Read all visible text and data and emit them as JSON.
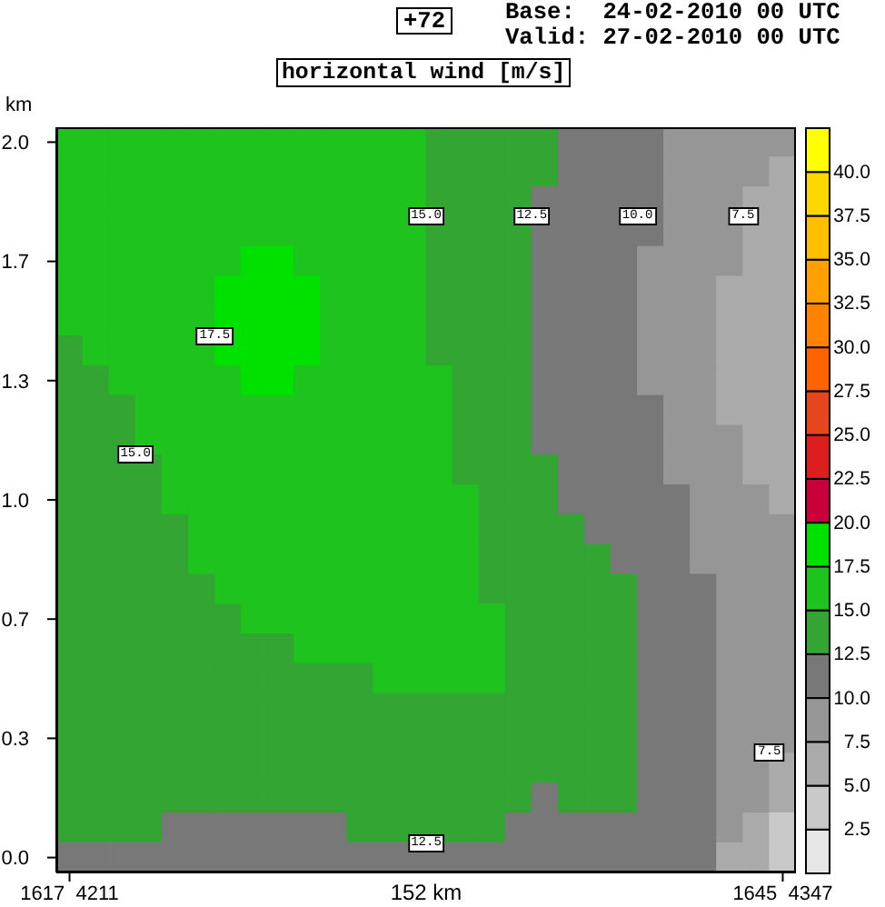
{
  "chart_data": {
    "type": "heatmap",
    "title": "horizontal wind [m/s]",
    "annotations": [
      "+72",
      "Base:  24-02-2010 00 UTC",
      "Valid: 27-02-2010 00 UTC",
      "17.5",
      "15.0",
      "15.0",
      "12.5",
      "10.0",
      "7.5",
      "7.5",
      "12.5"
    ],
    "xlabel": "152 km",
    "ylabel": "km",
    "categories": [
      "1617  4211",
      null,
      null,
      null,
      null,
      null,
      null,
      null,
      null,
      null,
      null,
      null,
      null,
      null,
      null,
      null,
      null,
      null,
      null,
      null,
      null,
      null,
      null,
      null,
      null,
      null,
      null,
      "1645  4347"
    ],
    "y_categories": [
      "2.0",
      null,
      null,
      null,
      "1.7",
      null,
      null,
      null,
      "1.3",
      null,
      null,
      null,
      "1.0",
      null,
      null,
      null,
      "0.7",
      null,
      null,
      null,
      "0.3",
      null,
      null,
      null,
      "0.0"
    ],
    "cells": [
      [
        16,
        16,
        16,
        16,
        16,
        16,
        16,
        16,
        16,
        16,
        16,
        16,
        16,
        16,
        14,
        14,
        14,
        14,
        14,
        11,
        11,
        11,
        11,
        9,
        9,
        9,
        9,
        9
      ],
      [
        16,
        16,
        16,
        16,
        16,
        16,
        16,
        16,
        16,
        16,
        16,
        16,
        16,
        16,
        14,
        14,
        14,
        14,
        14,
        11,
        11,
        11,
        11,
        9,
        9,
        9,
        9,
        6
      ],
      [
        16,
        16,
        16,
        16,
        16,
        16,
        16,
        16,
        16,
        16,
        16,
        16,
        16,
        16,
        14,
        14,
        14,
        14,
        11,
        11,
        11,
        11,
        11,
        9,
        9,
        9,
        6,
        6
      ],
      [
        16,
        16,
        16,
        16,
        16,
        16,
        16,
        16,
        16,
        16,
        16,
        16,
        16,
        16,
        14,
        14,
        14,
        14,
        11,
        11,
        11,
        11,
        11,
        9,
        9,
        9,
        6,
        6
      ],
      [
        16,
        16,
        16,
        16,
        16,
        16,
        16,
        19,
        19,
        16,
        16,
        16,
        16,
        16,
        14,
        14,
        14,
        14,
        11,
        11,
        11,
        11,
        9,
        9,
        9,
        9,
        6,
        6
      ],
      [
        16,
        16,
        16,
        16,
        16,
        16,
        19,
        19,
        19,
        19,
        16,
        16,
        16,
        16,
        14,
        14,
        14,
        14,
        11,
        11,
        11,
        11,
        9,
        9,
        9,
        6,
        6,
        6
      ],
      [
        16,
        16,
        16,
        16,
        16,
        16,
        19,
        19,
        19,
        19,
        16,
        16,
        16,
        16,
        14,
        14,
        14,
        14,
        11,
        11,
        11,
        11,
        9,
        9,
        9,
        6,
        6,
        6
      ],
      [
        14,
        16,
        16,
        16,
        16,
        16,
        19,
        19,
        19,
        19,
        16,
        16,
        16,
        16,
        14,
        14,
        14,
        14,
        11,
        11,
        11,
        11,
        9,
        9,
        9,
        6,
        6,
        6
      ],
      [
        14,
        14,
        16,
        16,
        16,
        16,
        16,
        19,
        19,
        16,
        16,
        16,
        16,
        16,
        16,
        14,
        14,
        14,
        11,
        11,
        11,
        11,
        9,
        9,
        9,
        6,
        6,
        6
      ],
      [
        14,
        14,
        14,
        16,
        16,
        16,
        16,
        16,
        16,
        16,
        16,
        16,
        16,
        16,
        16,
        14,
        14,
        14,
        11,
        11,
        11,
        11,
        11,
        9,
        9,
        6,
        6,
        6
      ],
      [
        14,
        14,
        14,
        16,
        16,
        16,
        16,
        16,
        16,
        16,
        16,
        16,
        16,
        16,
        16,
        14,
        14,
        14,
        11,
        11,
        11,
        11,
        11,
        9,
        9,
        9,
        6,
        6
      ],
      [
        14,
        14,
        14,
        14,
        16,
        16,
        16,
        16,
        16,
        16,
        16,
        16,
        16,
        16,
        16,
        14,
        14,
        14,
        14,
        11,
        11,
        11,
        11,
        9,
        9,
        9,
        6,
        6
      ],
      [
        14,
        14,
        14,
        14,
        16,
        16,
        16,
        16,
        16,
        16,
        16,
        16,
        16,
        16,
        16,
        16,
        14,
        14,
        14,
        11,
        11,
        11,
        11,
        11,
        9,
        9,
        9,
        6
      ],
      [
        14,
        14,
        14,
        14,
        14,
        16,
        16,
        16,
        16,
        16,
        16,
        16,
        16,
        16,
        16,
        16,
        14,
        14,
        14,
        14,
        11,
        11,
        11,
        11,
        9,
        9,
        9,
        9
      ],
      [
        14,
        14,
        14,
        14,
        14,
        16,
        16,
        16,
        16,
        16,
        16,
        16,
        16,
        16,
        16,
        16,
        14,
        14,
        14,
        14,
        14,
        11,
        11,
        11,
        9,
        9,
        9,
        9
      ],
      [
        14,
        14,
        14,
        14,
        14,
        14,
        16,
        16,
        16,
        16,
        16,
        16,
        16,
        16,
        16,
        16,
        14,
        14,
        14,
        14,
        14,
        14,
        11,
        11,
        11,
        9,
        9,
        9
      ],
      [
        14,
        14,
        14,
        14,
        14,
        14,
        14,
        16,
        16,
        16,
        16,
        16,
        16,
        16,
        16,
        16,
        16,
        14,
        14,
        14,
        14,
        14,
        11,
        11,
        11,
        9,
        9,
        9
      ],
      [
        14,
        14,
        14,
        14,
        14,
        14,
        14,
        14,
        14,
        16,
        16,
        16,
        16,
        16,
        16,
        16,
        16,
        14,
        14,
        14,
        14,
        14,
        11,
        11,
        11,
        9,
        9,
        9
      ],
      [
        14,
        14,
        14,
        14,
        14,
        14,
        14,
        14,
        14,
        14,
        14,
        14,
        16,
        16,
        16,
        16,
        16,
        14,
        14,
        14,
        14,
        14,
        11,
        11,
        11,
        9,
        9,
        9
      ],
      [
        14,
        14,
        14,
        14,
        14,
        14,
        14,
        14,
        14,
        14,
        14,
        14,
        14,
        14,
        14,
        14,
        14,
        14,
        14,
        14,
        14,
        14,
        11,
        11,
        11,
        9,
        9,
        9
      ],
      [
        14,
        14,
        14,
        14,
        14,
        14,
        14,
        14,
        14,
        14,
        14,
        14,
        14,
        14,
        14,
        14,
        14,
        14,
        14,
        14,
        14,
        14,
        11,
        11,
        11,
        9,
        9,
        9
      ],
      [
        14,
        14,
        14,
        14,
        14,
        14,
        14,
        14,
        14,
        14,
        14,
        14,
        14,
        14,
        14,
        14,
        14,
        14,
        14,
        14,
        14,
        14,
        11,
        11,
        11,
        9,
        9,
        6
      ],
      [
        14,
        14,
        14,
        14,
        14,
        14,
        14,
        14,
        14,
        14,
        14,
        14,
        14,
        14,
        14,
        14,
        14,
        14,
        11,
        14,
        14,
        14,
        11,
        11,
        11,
        9,
        9,
        6
      ],
      [
        14,
        14,
        14,
        14,
        11,
        11,
        11,
        11,
        11,
        11,
        11,
        14,
        14,
        14,
        14,
        14,
        14,
        11,
        11,
        11,
        11,
        11,
        11,
        11,
        11,
        9,
        6,
        4
      ],
      [
        11,
        11,
        11,
        11,
        11,
        11,
        11,
        11,
        11,
        11,
        11,
        11,
        11,
        11,
        11,
        11,
        11,
        11,
        11,
        11,
        11,
        11,
        11,
        11,
        11,
        6,
        6,
        4
      ]
    ],
    "clim": [
      0,
      42.5
    ],
    "cticks": [
      2.5,
      {
        "value": 5,
        "label": "5.0"
      },
      7.5,
      {
        "value": 10,
        "label": "10.0"
      },
      12.5,
      {
        "value": 15,
        "label": "15.0"
      },
      17.5,
      {
        "value": 20,
        "label": "20.0"
      },
      22.5,
      {
        "value": 25,
        "label": "25.0"
      },
      27.5,
      {
        "value": 30,
        "label": "30.0"
      },
      32.5,
      {
        "value": 35,
        "label": "35.0"
      },
      37.5,
      {
        "value": 40,
        "label": "40.0"
      }
    ],
    "colors": [
      "#e6e6e6",
      "#c8c8c8",
      "#aaaaaa",
      "#969696",
      "#787878",
      "#32a532",
      "#1ec31e",
      "#00e100",
      "#c8003c",
      "#dc1e1e",
      "#e6461e",
      "#ff6400",
      "#ff8200",
      "#ffa000",
      "#ffbe00",
      "#ffd700",
      "#ffff00"
    ]
  }
}
